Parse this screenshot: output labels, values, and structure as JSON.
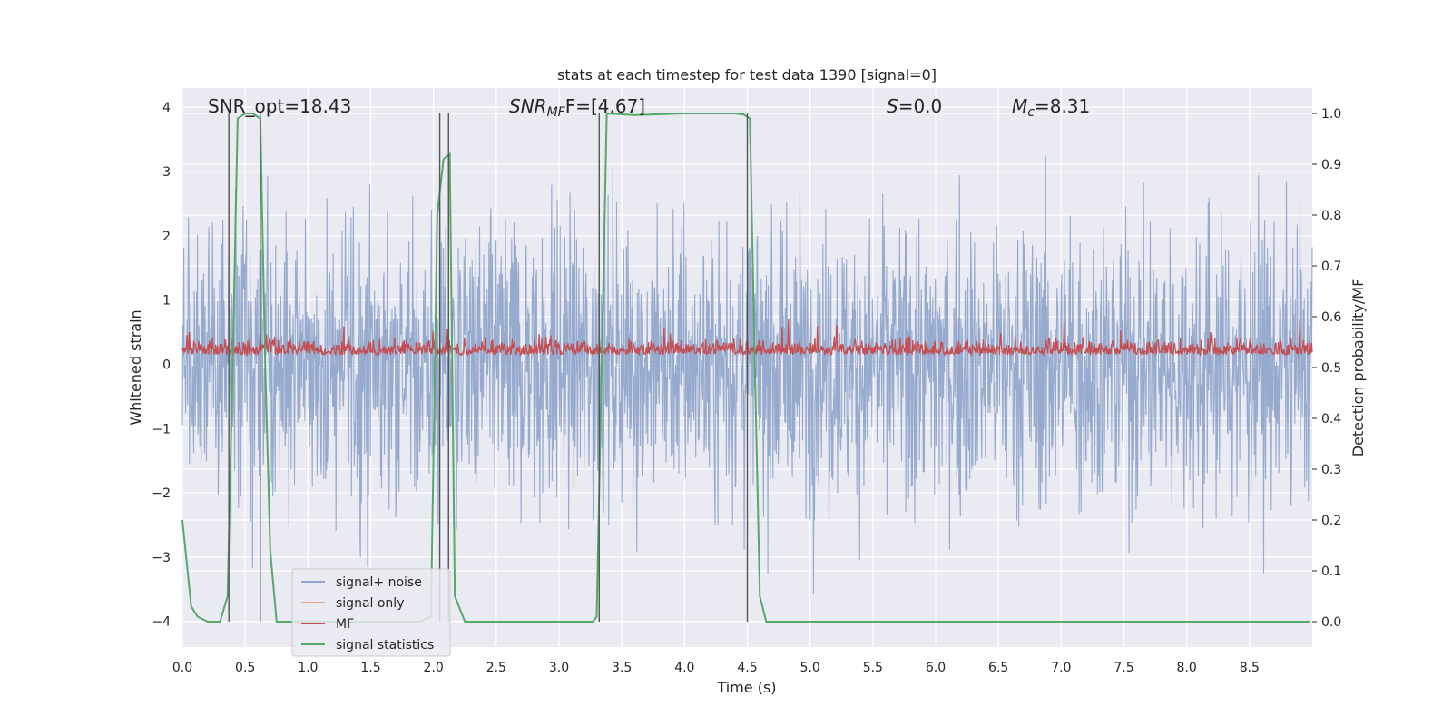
{
  "chart_data": {
    "type": "line",
    "title": "stats at each timestep for test data 1390 [signal=0]",
    "xlabel": "Time (s)",
    "ylabel": "Whitened strain",
    "y2label": "Detection probability/MF",
    "xlim": [
      0.0,
      9.0
    ],
    "ylim": [
      -4.4,
      4.3
    ],
    "y2lim": [
      -0.05,
      1.05
    ],
    "x_ticks": [
      "0.0",
      "0.5",
      "1.0",
      "1.5",
      "2.0",
      "2.5",
      "3.0",
      "3.5",
      "4.0",
      "4.5",
      "5.0",
      "5.5",
      "6.0",
      "6.5",
      "7.0",
      "7.5",
      "8.0",
      "8.5"
    ],
    "x_tick_values": [
      0.0,
      0.5,
      1.0,
      1.5,
      2.0,
      2.5,
      3.0,
      3.5,
      4.0,
      4.5,
      5.0,
      5.5,
      6.0,
      6.5,
      7.0,
      7.5,
      8.0,
      8.5
    ],
    "y_ticks": [
      "4",
      "3",
      "2",
      "1",
      "0",
      "−1",
      "−2",
      "−3",
      "−4"
    ],
    "y_tick_values": [
      4,
      3,
      2,
      1,
      0,
      -1,
      -2,
      -3,
      -4
    ],
    "y2_ticks": [
      "1.0",
      "0.9",
      "0.8",
      "0.7",
      "0.6",
      "0.5",
      "0.4",
      "0.3",
      "0.2",
      "0.1",
      "0.0"
    ],
    "y2_tick_values": [
      1.0,
      0.9,
      0.8,
      0.7,
      0.6,
      0.5,
      0.4,
      0.3,
      0.2,
      0.1,
      0.0
    ],
    "grid": true,
    "legend_position": "lower-left",
    "annotations": {
      "snr_opt": "SNR_opt=18.43",
      "snr_mf_main": "SNR",
      "snr_mf_sub": "MF",
      "snr_mf_rest": "F=[4.67]",
      "s_main": "S",
      "s_rest": "=0.0",
      "mc_main": "M",
      "mc_sub": "c",
      "mc_rest": "=8.31"
    },
    "series": [
      {
        "name": "signal+ noise",
        "color": "#91a6cb",
        "approx_amplitude": 1.6,
        "approx_peak_range": [
          -3.9,
          3.95
        ]
      },
      {
        "name": "signal only",
        "color": "#eea78c",
        "values": []
      },
      {
        "name": "MF",
        "color": "#c44e52",
        "axis": "right",
        "approx_range": [
          0.5,
          0.63
        ]
      },
      {
        "name": "signal statistics",
        "color": "#55a868",
        "axis": "right",
        "x": [
          0.0,
          0.07,
          0.12,
          0.2,
          0.3,
          0.36,
          0.4,
          0.44,
          0.5,
          0.56,
          0.62,
          0.66,
          0.7,
          0.75,
          0.8,
          1.0,
          1.5,
          1.9,
          1.98,
          2.03,
          2.08,
          2.13,
          2.17,
          2.25,
          2.6,
          3.0,
          3.27,
          3.3,
          3.34,
          3.38,
          3.6,
          4.0,
          4.4,
          4.47,
          4.52,
          4.56,
          4.6,
          4.65,
          5.0,
          6.0,
          7.0,
          8.0,
          8.98
        ],
        "y": [
          0.2,
          0.03,
          0.01,
          0.0,
          0.0,
          0.05,
          0.5,
          0.99,
          1.0,
          1.0,
          0.99,
          0.5,
          0.14,
          0.0,
          0.0,
          0.0,
          0.0,
          0.0,
          0.01,
          0.8,
          0.91,
          0.92,
          0.05,
          0.0,
          0.0,
          0.0,
          0.0,
          0.01,
          0.5,
          1.0,
          0.997,
          1.0,
          1.0,
          0.998,
          0.99,
          0.5,
          0.05,
          0.0,
          0.0,
          0.0,
          0.0,
          0.0,
          0.0
        ]
      }
    ],
    "vertical_markers_x": [
      0.37,
      0.62,
      2.05,
      2.12,
      3.32,
      4.5
    ]
  }
}
